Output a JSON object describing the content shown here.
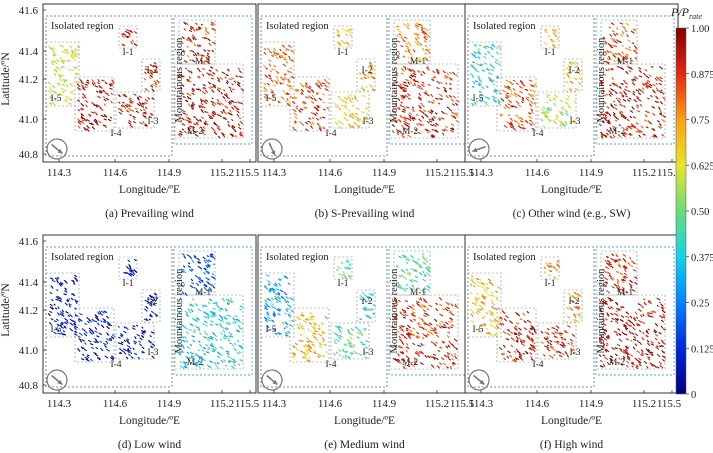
{
  "chart_data": [
    {
      "type": "scatter",
      "caption": "(a) Prevailing wind",
      "arrow_deg": -40,
      "xticks": [
        "114.3",
        "114.6",
        "114.9",
        "115.2",
        "115.5"
      ],
      "xlabel": "Longitude/ºE",
      "ylabel": "Latitude/ºN",
      "yticks": [
        "41.6",
        "41.4",
        "41.2",
        "41.0",
        "40.8"
      ],
      "xlim": [
        114.25,
        115.55
      ],
      "ylim": [
        40.75,
        41.65
      ],
      "regions": {
        "I-1": 0.9,
        "I-2": 0.9,
        "I-3": 0.93,
        "I-4": 0.93,
        "I-5": 0.62,
        "M-1": 0.9,
        "M-2": 0.93
      }
    },
    {
      "type": "scatter",
      "caption": "(b) S-Prevailing wind",
      "arrow_deg": -65,
      "xticks": [
        "114.3",
        "114.6",
        "114.9",
        "115.2",
        "115.5"
      ],
      "xlabel": "Longitude/ºE",
      "xlim": [
        114.25,
        115.55
      ],
      "ylim": [
        40.75,
        41.65
      ],
      "regions": {
        "I-1": 0.72,
        "I-2": 0.72,
        "I-3": 0.66,
        "I-4": 0.85,
        "I-5": 0.82,
        "M-1": 0.78,
        "M-2": 0.9
      }
    },
    {
      "type": "scatter",
      "caption": "(c) Other wind (e.g., SW)",
      "arrow_deg": 200,
      "xticks": [
        "114.3",
        "114.6",
        "114.9",
        "115.2",
        "115.5"
      ],
      "xlabel": "Longitude/ºE",
      "xlim": [
        114.25,
        115.55
      ],
      "ylim": [
        40.75,
        41.65
      ],
      "regions": {
        "I-1": 0.7,
        "I-2": 0.7,
        "I-3": 0.55,
        "I-4": 0.85,
        "I-5": 0.4,
        "M-1": 0.85,
        "M-2": 0.92
      }
    },
    {
      "type": "scatter",
      "caption": "(d) Low wind",
      "arrow_deg": -40,
      "xticks": [
        "114.3",
        "114.6",
        "114.9",
        "115.2",
        "115.5"
      ],
      "xlabel": "Longitude/ºE",
      "ylabel": "Latitude/ºN",
      "yticks": [
        "41.6",
        "41.4",
        "41.2",
        "41.0",
        "40.8"
      ],
      "xlim": [
        114.25,
        115.55
      ],
      "ylim": [
        40.75,
        41.65
      ],
      "regions": {
        "I-1": 0.05,
        "I-2": 0.05,
        "I-3": 0.05,
        "I-4": 0.08,
        "I-5": 0.05,
        "M-1": 0.18,
        "M-2": 0.38
      }
    },
    {
      "type": "scatter",
      "caption": "(e) Medium wind",
      "arrow_deg": -40,
      "xticks": [
        "114.3",
        "114.6",
        "114.9",
        "115.2",
        "115.5"
      ],
      "xlabel": "Longitude/ºE",
      "xlim": [
        114.25,
        115.55
      ],
      "ylim": [
        40.75,
        41.65
      ],
      "regions": {
        "I-1": 0.5,
        "I-2": 0.4,
        "I-3": 0.45,
        "I-4": 0.7,
        "I-5": 0.3,
        "M-1": 0.45,
        "M-2": 0.88
      }
    },
    {
      "type": "scatter",
      "caption": "(f) High wind",
      "arrow_deg": -40,
      "xticks": [
        "114.3",
        "114.6",
        "114.9",
        "115.2",
        "115.5"
      ],
      "xlabel": "Longitude/ºE",
      "xlim": [
        114.25,
        115.55
      ],
      "ylim": [
        40.75,
        41.65
      ],
      "regions": {
        "I-1": 0.75,
        "I-2": 0.75,
        "I-3": 0.9,
        "I-4": 0.93,
        "I-5": 0.7,
        "M-1": 0.88,
        "M-2": 0.95
      }
    }
  ],
  "labels": {
    "isolated": "Isolated region",
    "mountainous": "Mountainous region",
    "regions": [
      "I-1",
      "I-2",
      "I-3",
      "I-4",
      "I-5",
      "M-1",
      "M-2"
    ]
  },
  "colorbar": {
    "title": "P/P",
    "title_sub": "rate",
    "range": [
      0,
      1
    ],
    "ticks": [
      "1.00",
      "0.875",
      "0.75",
      "0.625",
      "0.50",
      "0.375",
      "0.25",
      "0.125",
      "0"
    ],
    "colors": {
      "top": "#8b0000",
      "red": "#d7191c",
      "orange": "#f5a623",
      "yellow": "#f0e442",
      "green": "#5ec962",
      "cyan": "#3ec9d6",
      "blue": "#2b6fd6",
      "bottom": "#00007a"
    }
  }
}
